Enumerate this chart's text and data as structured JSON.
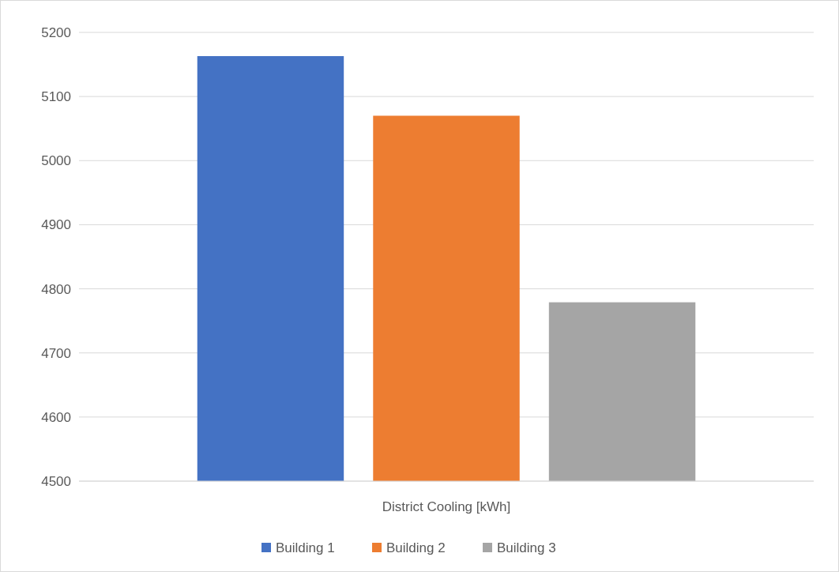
{
  "chart_data": {
    "type": "bar",
    "categories": [
      "District Cooling [kWh]"
    ],
    "series": [
      {
        "name": "Building 1",
        "color": "#4472c4",
        "values": [
          5163
        ]
      },
      {
        "name": "Building 2",
        "color": "#ed7d31",
        "values": [
          5070
        ]
      },
      {
        "name": "Building 3",
        "color": "#a5a5a5",
        "values": [
          4779
        ]
      }
    ],
    "ylim": [
      4500,
      5200
    ],
    "yticks": [
      4500,
      4600,
      4700,
      4800,
      4900,
      5000,
      5100,
      5200
    ],
    "grid": "y",
    "legend": "bottom"
  }
}
